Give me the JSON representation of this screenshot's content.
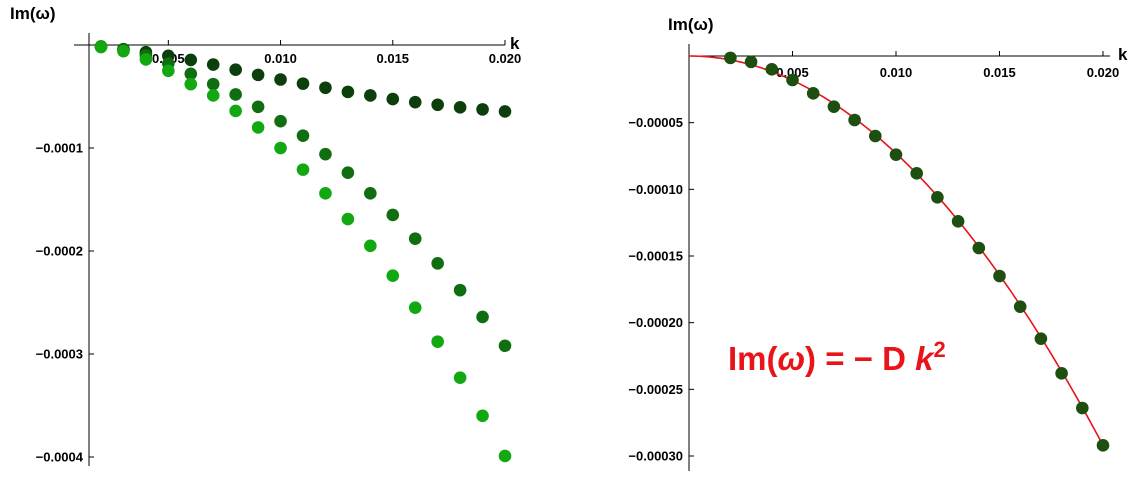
{
  "chart_data": [
    {
      "type": "scatter",
      "title": "",
      "xlabel": "k",
      "ylabel": "Im(ω)",
      "xlim": [
        0.002,
        0.02
      ],
      "ylim": [
        -0.00042,
        0.0
      ],
      "xticks": [
        0.005,
        0.01,
        0.015,
        0.02
      ],
      "xtick_labels": [
        "0.005",
        "0.010",
        "0.015",
        "0.020"
      ],
      "yticks": [
        -0.0001,
        -0.0002,
        -0.0003,
        -0.0004
      ],
      "ytick_labels": [
        "-0.0001",
        "-0.0002",
        "-0.0003",
        "-0.0004"
      ],
      "grid": false,
      "x": [
        0.002,
        0.003,
        0.004,
        0.005,
        0.006,
        0.007,
        0.008,
        0.009,
        0.01,
        0.011,
        0.012,
        0.013,
        0.014,
        0.015,
        0.016,
        0.017,
        0.018,
        0.019,
        0.02
      ],
      "series": [
        {
          "color": "#0c3f0c",
          "values": [
            -1.7e-06,
            -4e-06,
            -7e-06,
            -1.05e-05,
            -1.45e-05,
            -1.9e-05,
            -2.4e-05,
            -2.9e-05,
            -3.35e-05,
            -3.75e-05,
            -4.15e-05,
            -4.55e-05,
            -4.9e-05,
            -5.25e-05,
            -5.55e-05,
            -5.8e-05,
            -6.05e-05,
            -6.25e-05,
            -6.45e-05
          ]
        },
        {
          "color": "#0f6e0f",
          "values": [
            -1.4e-06,
            -4.4e-06,
            -1e-05,
            -1.8e-05,
            -2.8e-05,
            -3.8e-05,
            -4.8e-05,
            -6e-05,
            -7.4e-05,
            -8.8e-05,
            -0.000106,
            -0.000124,
            -0.000144,
            -0.000165,
            -0.000188,
            -0.000212,
            -0.000238,
            -0.000264,
            -0.000292
          ]
        },
        {
          "color": "#11a811",
          "values": [
            -2e-06,
            -6e-06,
            -1.4e-05,
            -2.5e-05,
            -3.8e-05,
            -4.9e-05,
            -6.4e-05,
            -8e-05,
            -0.0001,
            -0.000121,
            -0.000144,
            -0.000169,
            -0.000195,
            -0.000224,
            -0.000255,
            -0.000288,
            -0.000323,
            -0.00036,
            -0.000399
          ]
        }
      ]
    },
    {
      "type": "scatter",
      "title": "",
      "xlabel": "k",
      "ylabel": "Im(ω)",
      "xlim": [
        0.0,
        0.02
      ],
      "ylim": [
        -0.0003,
        0.0
      ],
      "xticks": [
        0.005,
        0.01,
        0.015,
        0.02
      ],
      "xtick_labels": [
        "0.005",
        "0.010",
        "0.015",
        "0.020"
      ],
      "yticks": [
        -5e-05,
        -0.0001,
        -0.00015,
        -0.0002,
        -0.00025,
        -0.0003
      ],
      "ytick_labels": [
        "-0.00005",
        "-0.00010",
        "-0.00015",
        "-0.00020",
        "-0.00025",
        "-0.00030"
      ],
      "grid": false,
      "x": [
        0.002,
        0.003,
        0.004,
        0.005,
        0.006,
        0.007,
        0.008,
        0.009,
        0.01,
        0.011,
        0.012,
        0.013,
        0.014,
        0.015,
        0.016,
        0.017,
        0.018,
        0.019,
        0.02
      ],
      "series": [
        {
          "color": "#1d4f10",
          "values": [
            -1.4e-06,
            -4.4e-06,
            -1e-05,
            -1.8e-05,
            -2.8e-05,
            -3.8e-05,
            -4.8e-05,
            -6e-05,
            -7.4e-05,
            -8.8e-05,
            -0.000106,
            -0.000124,
            -0.000144,
            -0.000165,
            -0.000188,
            -0.000212,
            -0.000238,
            -0.000264,
            -0.000292
          ]
        }
      ],
      "fit": {
        "color": "#e8141a",
        "D": 0.73,
        "from": 0.0,
        "to": 0.02
      },
      "annotation": {
        "prefix": "Im(",
        "omega": "ω",
        "middle": ") = − D ",
        "k": "k",
        "exponent": "2"
      }
    }
  ]
}
